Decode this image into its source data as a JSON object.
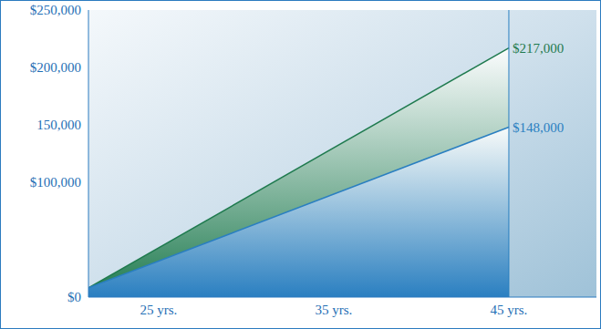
{
  "chart_data": {
    "type": "area",
    "x": [
      21,
      45
    ],
    "xlim": [
      21,
      50
    ],
    "xticks": [
      {
        "value": 25,
        "label": "25 yrs."
      },
      {
        "value": 35,
        "label": "35 yrs."
      },
      {
        "value": 45,
        "label": "45 yrs."
      }
    ],
    "ylim": [
      0,
      250000
    ],
    "yticks": [
      {
        "value": 0,
        "label": "$0"
      },
      {
        "value": 100000,
        "label": "$100,000"
      },
      {
        "value": 150000,
        "label": "150,000"
      },
      {
        "value": 200000,
        "label": "$200,000"
      },
      {
        "value": 250000,
        "label": "$250,000"
      }
    ],
    "series": [
      {
        "color": "#1e7a4e",
        "values": [
          8000,
          217000
        ],
        "value_labels": [
          null,
          "$217,000"
        ]
      },
      {
        "color": "#2a7fc1",
        "values": [
          8000,
          148000
        ],
        "value_labels": [
          null,
          "$148,000"
        ]
      }
    ],
    "stacked": false,
    "grid": false
  }
}
